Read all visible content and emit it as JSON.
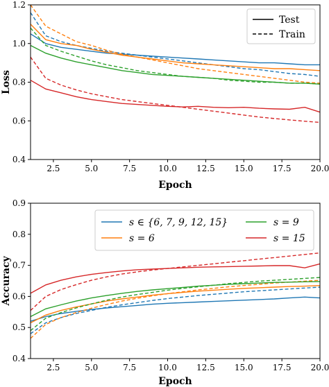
{
  "colors": {
    "blue": "#1f77b4",
    "orange": "#ff7f0e",
    "green": "#2ca02c",
    "red": "#d62728"
  },
  "chart_data": [
    {
      "type": "line",
      "xlabel": "Epoch",
      "ylabel": "Loss",
      "xlim": [
        1,
        20
      ],
      "ylim": [
        0.4,
        1.2
      ],
      "xticks": [
        "2.5",
        "5.0",
        "7.5",
        "10.0",
        "12.5",
        "15.0",
        "17.5",
        "20.0"
      ],
      "yticks": [
        "0.4",
        "0.6",
        "0.8",
        "1.0",
        "1.2"
      ],
      "legend": {
        "position": "upper right",
        "entries": [
          {
            "label": "Test",
            "style": "solid"
          },
          {
            "label": "Train",
            "style": "dashed"
          }
        ]
      },
      "x": [
        1,
        2,
        3,
        4,
        5,
        6,
        7,
        8,
        9,
        10,
        11,
        12,
        13,
        14,
        15,
        16,
        17,
        18,
        19,
        20
      ],
      "series": [
        {
          "color_key": "blue",
          "style": "solid",
          "values": [
            1.05,
            1.0,
            0.98,
            0.97,
            0.96,
            0.95,
            0.945,
            0.94,
            0.935,
            0.93,
            0.925,
            0.92,
            0.915,
            0.91,
            0.905,
            0.9,
            0.9,
            0.895,
            0.89,
            0.89
          ]
        },
        {
          "color_key": "blue",
          "style": "dashed",
          "values": [
            1.16,
            1.04,
            1.01,
            0.99,
            0.975,
            0.96,
            0.95,
            0.94,
            0.93,
            0.92,
            0.91,
            0.9,
            0.89,
            0.88,
            0.87,
            0.865,
            0.855,
            0.845,
            0.84,
            0.83
          ]
        },
        {
          "color_key": "orange",
          "style": "solid",
          "values": [
            1.1,
            1.02,
            1.0,
            0.99,
            0.97,
            0.955,
            0.94,
            0.93,
            0.92,
            0.91,
            0.9,
            0.895,
            0.89,
            0.885,
            0.88,
            0.875,
            0.87,
            0.87,
            0.865,
            0.86
          ]
        },
        {
          "color_key": "orange",
          "style": "dashed",
          "values": [
            1.2,
            1.09,
            1.05,
            1.01,
            0.99,
            0.965,
            0.945,
            0.93,
            0.915,
            0.9,
            0.885,
            0.87,
            0.86,
            0.85,
            0.84,
            0.83,
            0.82,
            0.81,
            0.8,
            0.795
          ]
        },
        {
          "color_key": "green",
          "style": "solid",
          "values": [
            0.99,
            0.95,
            0.925,
            0.905,
            0.89,
            0.875,
            0.86,
            0.85,
            0.84,
            0.835,
            0.83,
            0.825,
            0.82,
            0.815,
            0.81,
            0.805,
            0.8,
            0.795,
            0.795,
            0.79
          ]
        },
        {
          "color_key": "green",
          "style": "dashed",
          "values": [
            1.08,
            0.99,
            0.96,
            0.935,
            0.91,
            0.89,
            0.875,
            0.86,
            0.85,
            0.84,
            0.83,
            0.825,
            0.82,
            0.81,
            0.805,
            0.8,
            0.8,
            0.795,
            0.795,
            0.79
          ]
        },
        {
          "color_key": "red",
          "style": "solid",
          "values": [
            0.81,
            0.765,
            0.745,
            0.725,
            0.71,
            0.7,
            0.69,
            0.685,
            0.68,
            0.675,
            0.672,
            0.675,
            0.67,
            0.668,
            0.67,
            0.665,
            0.662,
            0.66,
            0.67,
            0.645
          ]
        },
        {
          "color_key": "red",
          "style": "dashed",
          "values": [
            0.93,
            0.82,
            0.785,
            0.76,
            0.74,
            0.725,
            0.71,
            0.7,
            0.69,
            0.68,
            0.67,
            0.66,
            0.65,
            0.64,
            0.63,
            0.62,
            0.612,
            0.605,
            0.598,
            0.592
          ]
        }
      ]
    },
    {
      "type": "line",
      "xlabel": "Epoch",
      "ylabel": "Accuracy",
      "xlim": [
        1,
        20
      ],
      "ylim": [
        0.4,
        0.9
      ],
      "xticks": [
        "2.5",
        "5.0",
        "7.5",
        "10.0",
        "12.5",
        "15.0",
        "17.5",
        "20.0"
      ],
      "yticks": [
        "0.4",
        "0.5",
        "0.6",
        "0.7",
        "0.8",
        "0.9"
      ],
      "legend": {
        "position": "upper right",
        "entries": [
          {
            "label": "s ∈ {6, 7, 9, 12, 15}",
            "color_key": "blue"
          },
          {
            "label": "s = 9",
            "color_key": "green"
          },
          {
            "label": "s = 6",
            "color_key": "orange"
          },
          {
            "label": "s = 15",
            "color_key": "red"
          }
        ]
      },
      "x": [
        1,
        2,
        3,
        4,
        5,
        6,
        7,
        8,
        9,
        10,
        11,
        12,
        13,
        14,
        15,
        16,
        17,
        18,
        19,
        20
      ],
      "series": [
        {
          "color_key": "blue",
          "style": "solid",
          "values": [
            0.52,
            0.535,
            0.545,
            0.552,
            0.558,
            0.563,
            0.567,
            0.571,
            0.575,
            0.578,
            0.58,
            0.582,
            0.584,
            0.586,
            0.588,
            0.59,
            0.592,
            0.595,
            0.598,
            0.595
          ]
        },
        {
          "color_key": "blue",
          "style": "dashed",
          "values": [
            0.48,
            0.515,
            0.532,
            0.545,
            0.555,
            0.565,
            0.573,
            0.58,
            0.587,
            0.593,
            0.598,
            0.603,
            0.607,
            0.611,
            0.615,
            0.618,
            0.621,
            0.624,
            0.627,
            0.63
          ]
        },
        {
          "color_key": "orange",
          "style": "solid",
          "values": [
            0.515,
            0.54,
            0.555,
            0.566,
            0.576,
            0.585,
            0.592,
            0.598,
            0.604,
            0.609,
            0.613,
            0.617,
            0.62,
            0.623,
            0.626,
            0.628,
            0.63,
            0.632,
            0.633,
            0.635
          ]
        },
        {
          "color_key": "orange",
          "style": "dashed",
          "values": [
            0.465,
            0.51,
            0.532,
            0.548,
            0.562,
            0.574,
            0.585,
            0.594,
            0.602,
            0.609,
            0.615,
            0.621,
            0.626,
            0.631,
            0.635,
            0.639,
            0.643,
            0.646,
            0.649,
            0.652
          ]
        },
        {
          "color_key": "green",
          "style": "solid",
          "values": [
            0.535,
            0.56,
            0.573,
            0.585,
            0.595,
            0.603,
            0.61,
            0.616,
            0.621,
            0.625,
            0.629,
            0.633,
            0.636,
            0.639,
            0.641,
            0.643,
            0.645,
            0.646,
            0.647,
            0.648
          ]
        },
        {
          "color_key": "green",
          "style": "dashed",
          "values": [
            0.49,
            0.53,
            0.548,
            0.563,
            0.576,
            0.588,
            0.598,
            0.606,
            0.613,
            0.62,
            0.626,
            0.631,
            0.636,
            0.641,
            0.645,
            0.649,
            0.652,
            0.655,
            0.658,
            0.661
          ]
        },
        {
          "color_key": "red",
          "style": "solid",
          "values": [
            0.61,
            0.637,
            0.652,
            0.663,
            0.671,
            0.677,
            0.682,
            0.686,
            0.688,
            0.69,
            0.692,
            0.694,
            0.695,
            0.696,
            0.697,
            0.698,
            0.699,
            0.699,
            0.692,
            0.705
          ]
        },
        {
          "color_key": "red",
          "style": "dashed",
          "values": [
            0.555,
            0.6,
            0.622,
            0.638,
            0.652,
            0.663,
            0.672,
            0.679,
            0.685,
            0.69,
            0.695,
            0.7,
            0.705,
            0.71,
            0.715,
            0.72,
            0.725,
            0.73,
            0.735,
            0.74
          ]
        }
      ]
    }
  ]
}
